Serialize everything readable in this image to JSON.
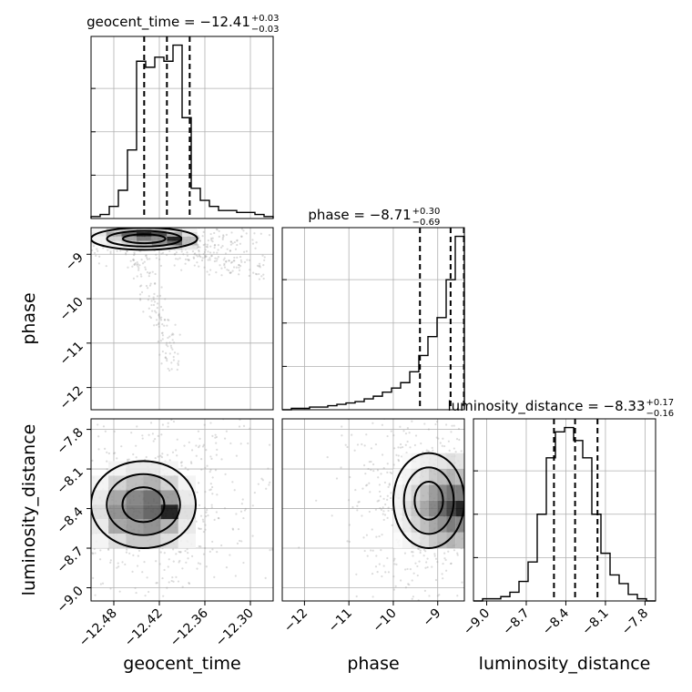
{
  "chart_data": {
    "type": "corner",
    "parameters": [
      {
        "name": "geocent_time",
        "axis_label": "geocent_time",
        "title_prefix": "geocent_time = −12.41",
        "title_plus": "+0.03",
        "title_minus": "−0.03",
        "range": [
          -12.51,
          -12.27
        ],
        "ticks": [
          -12.48,
          -12.42,
          -12.36,
          -12.3
        ],
        "tick_labels": [
          "−12.48",
          "−12.42",
          "−12.36",
          "−12.30"
        ],
        "quantiles": [
          -12.44,
          -12.41,
          -12.38
        ],
        "hist_bin_edges": [
          -12.51,
          -12.498,
          -12.486,
          -12.474,
          -12.462,
          -12.45,
          -12.438,
          -12.426,
          -12.414,
          -12.402,
          -12.39,
          -12.378,
          -12.366,
          -12.354,
          -12.342,
          -12.33,
          -12.318,
          -12.306,
          -12.294,
          -12.282,
          -12.27
        ],
        "hist_values": [
          1,
          2,
          6,
          14,
          34,
          78,
          75,
          80,
          78,
          86,
          50,
          15,
          9,
          6,
          4,
          4,
          3,
          3,
          2,
          1
        ]
      },
      {
        "name": "phase",
        "axis_label": "phase",
        "title_prefix": "phase = −8.71",
        "title_plus": "+0.30",
        "title_minus": "−0.69",
        "range": [
          -12.5,
          -8.4
        ],
        "ticks": [
          -12,
          -11,
          -10,
          -9
        ],
        "tick_labels": [
          "−12",
          "−11",
          "−10",
          "−9"
        ],
        "quantiles": [
          -9.4,
          -8.71,
          -8.41
        ],
        "hist_bin_edges": [
          -12.5,
          -12.295,
          -12.09,
          -11.885,
          -11.68,
          -11.475,
          -11.27,
          -11.065,
          -10.86,
          -10.655,
          -10.45,
          -10.245,
          -10.04,
          -9.835,
          -9.63,
          -9.425,
          -9.22,
          -9.015,
          -8.81,
          -8.605,
          -8.4
        ],
        "hist_values": [
          0,
          0.5,
          0.5,
          1,
          1,
          1.5,
          2,
          2.5,
          3,
          4,
          5,
          6.5,
          8,
          10,
          14,
          20,
          27,
          34,
          48,
          64
        ]
      },
      {
        "name": "luminosity_distance",
        "axis_label": "luminosity_distance",
        "title_prefix": "luminosity_distance = −8.33",
        "title_plus": "+0.17",
        "title_minus": "−0.16",
        "range": [
          -9.1,
          -7.72
        ],
        "ticks": [
          -9.0,
          -8.7,
          -8.4,
          -8.1,
          -7.8
        ],
        "tick_labels": [
          "−9.0",
          "−8.7",
          "−8.4",
          "−8.1",
          "−7.8"
        ],
        "quantiles": [
          -8.49,
          -8.33,
          -8.16
        ],
        "hist_bin_edges": [
          -9.1,
          -9.031,
          -8.962,
          -8.893,
          -8.824,
          -8.755,
          -8.686,
          -8.617,
          -8.548,
          -8.479,
          -8.41,
          -8.341,
          -8.272,
          -8.203,
          -8.134,
          -8.065,
          -7.996,
          -7.927,
          -7.858,
          -7.789,
          -7.72
        ],
        "hist_values": [
          0,
          1,
          1,
          2,
          4,
          9,
          18,
          40,
          66,
          78,
          80,
          74,
          66,
          40,
          22,
          12,
          8,
          3,
          1,
          0
        ]
      }
    ],
    "density_grid_lumdist_vs_time": {
      "x_edges": [
        -12.51,
        -12.487,
        -12.464,
        -12.441,
        -12.418,
        -12.395,
        -12.372
      ],
      "y_edges": [
        -8.7,
        -8.59,
        -8.48,
        -8.37,
        -8.26,
        -8.15,
        -8.04
      ],
      "values": [
        [
          0.05,
          0.15,
          0.25,
          0.25,
          0.15,
          0.05
        ],
        [
          0.1,
          0.4,
          0.45,
          0.5,
          0.35,
          0.1
        ],
        [
          0.15,
          0.5,
          0.6,
          0.7,
          1.0,
          0.15
        ],
        [
          0.1,
          0.4,
          0.55,
          0.65,
          0.45,
          0.1
        ],
        [
          0.05,
          0.2,
          0.3,
          0.35,
          0.2,
          0.05
        ],
        [
          0.0,
          0.05,
          0.1,
          0.1,
          0.05,
          0.0
        ]
      ]
    },
    "density_grid_lumdist_vs_phase": {
      "x_edges": [
        -10.0,
        -9.8,
        -9.6,
        -9.4,
        -9.2,
        -9.0,
        -8.8,
        -8.6,
        -8.4
      ],
      "y_edges": [
        -8.7,
        -8.58,
        -8.46,
        -8.34,
        -8.22,
        -8.1,
        -7.98
      ],
      "values": [
        [
          0.02,
          0.05,
          0.1,
          0.15,
          0.25,
          0.3,
          0.35,
          0.3
        ],
        [
          0.05,
          0.1,
          0.2,
          0.3,
          0.4,
          0.5,
          0.6,
          0.55
        ],
        [
          0.05,
          0.15,
          0.25,
          0.4,
          0.55,
          0.7,
          0.85,
          1.0
        ],
        [
          0.05,
          0.1,
          0.2,
          0.3,
          0.45,
          0.55,
          0.65,
          0.6
        ],
        [
          0.02,
          0.05,
          0.1,
          0.15,
          0.25,
          0.3,
          0.35,
          0.3
        ],
        [
          0.0,
          0.02,
          0.05,
          0.08,
          0.1,
          0.12,
          0.15,
          0.12
        ]
      ]
    },
    "density_grid_phase_vs_time": {
      "x_edges": [
        -12.51,
        -12.49,
        -12.47,
        -12.45,
        -12.43,
        -12.41,
        -12.39,
        -12.37
      ],
      "y_edges": [
        -8.9,
        -8.8,
        -8.7,
        -8.6,
        -8.5,
        -8.4
      ],
      "values": [
        [
          0.0,
          0.05,
          0.05,
          0.1,
          0.15,
          0.2,
          0.1
        ],
        [
          0.05,
          0.1,
          0.2,
          0.3,
          0.5,
          0.7,
          0.3
        ],
        [
          0.05,
          0.2,
          0.4,
          0.6,
          0.5,
          1.0,
          0.3
        ],
        [
          0.1,
          0.4,
          0.7,
          1.0,
          0.8,
          0.4,
          0.15
        ],
        [
          0.05,
          0.2,
          0.3,
          0.4,
          0.3,
          0.15,
          0.05
        ]
      ]
    },
    "contour_levels": 3,
    "grid": true
  }
}
